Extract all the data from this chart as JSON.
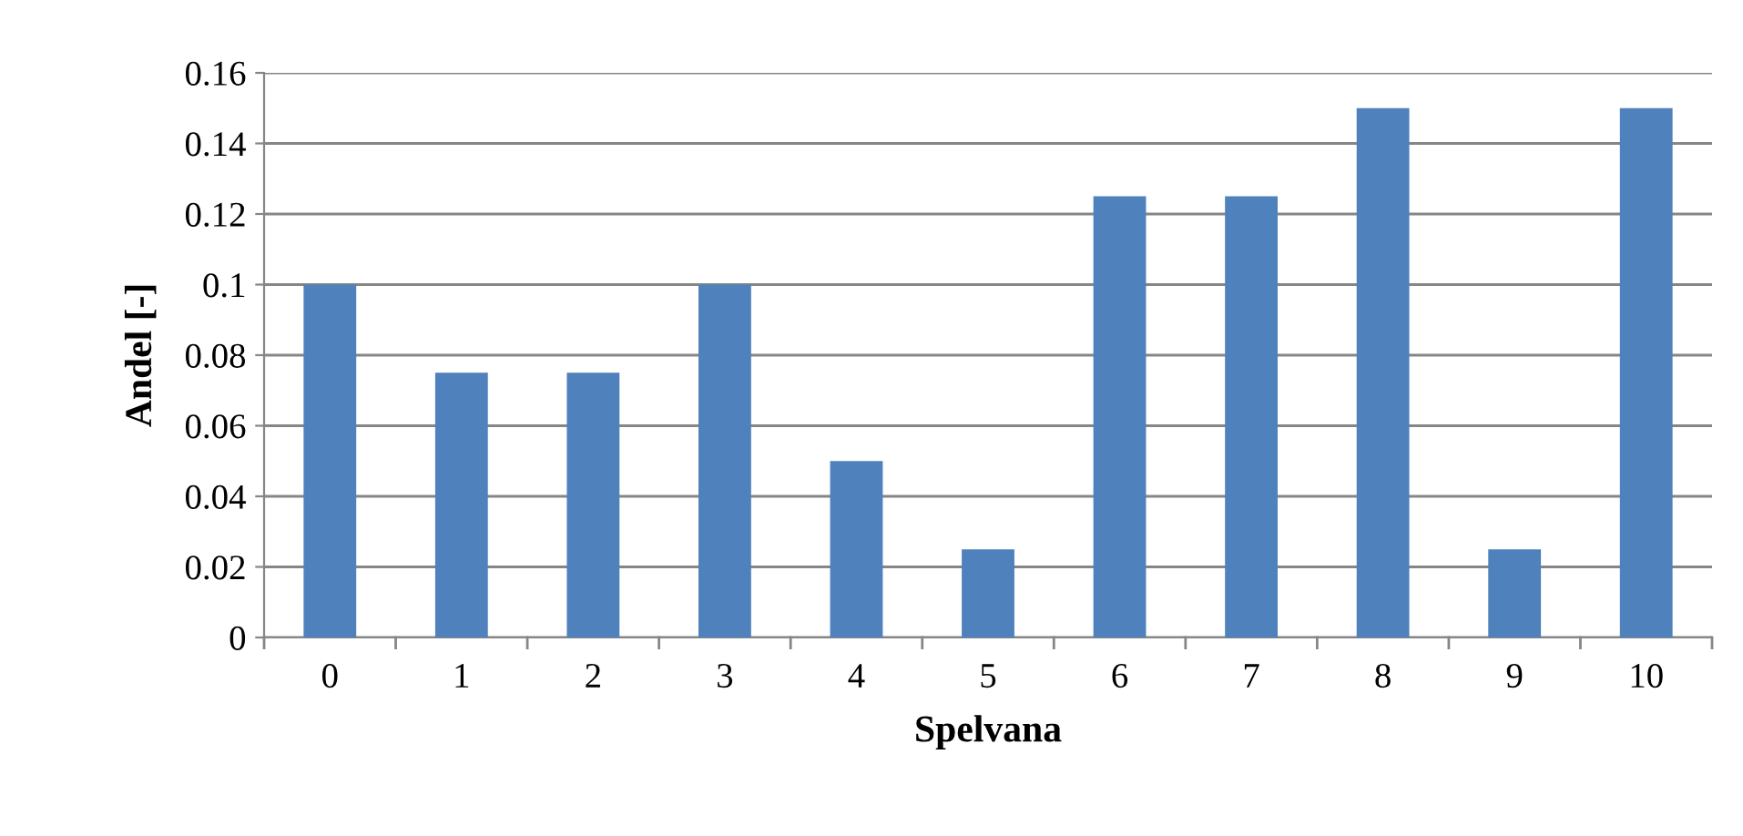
{
  "chart_data": {
    "type": "bar",
    "xlabel": "Spelvana",
    "ylabel": "Andel [-]",
    "categories": [
      "0",
      "1",
      "2",
      "3",
      "4",
      "5",
      "6",
      "7",
      "8",
      "9",
      "10"
    ],
    "values": [
      0.1,
      0.075,
      0.075,
      0.1,
      0.05,
      0.025,
      0.125,
      0.125,
      0.15,
      0.025,
      0.15
    ],
    "color": "#4f81bd",
    "ylim": [
      0,
      0.16
    ],
    "yticks": [
      0,
      0.02,
      0.04,
      0.06,
      0.08,
      0.1,
      0.12,
      0.14,
      0.16
    ],
    "grid": "y",
    "legend": false
  }
}
